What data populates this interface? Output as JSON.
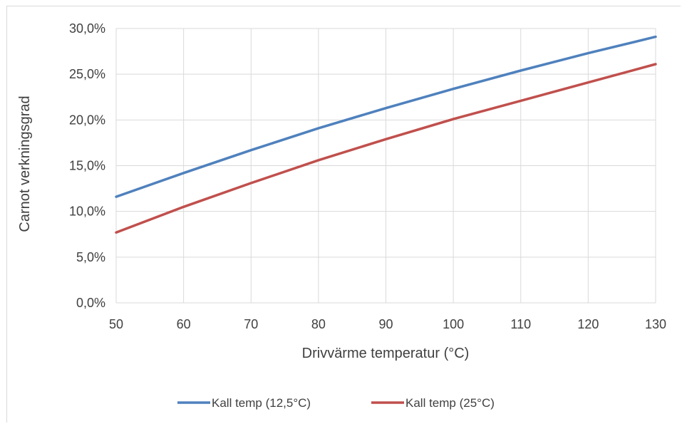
{
  "chart_data": {
    "type": "line",
    "xlabel": "Drivvärme temperatur (°C)",
    "ylabel": "Carnot verkningsgrad",
    "xlim": [
      50,
      130
    ],
    "ylim": [
      0,
      0.3
    ],
    "grid": true,
    "legend_position": "bottom",
    "x_ticks": [
      "50",
      "60",
      "70",
      "80",
      "90",
      "100",
      "110",
      "120",
      "130"
    ],
    "y_ticks": [
      "0,0%",
      "5,0%",
      "10,0%",
      "15,0%",
      "20,0%",
      "25,0%",
      "30,0%"
    ],
    "x": [
      50,
      60,
      70,
      80,
      90,
      100,
      110,
      120,
      130
    ],
    "series": [
      {
        "name": "Kall temp (12,5°C)",
        "color": "#4f81bd",
        "values": [
          0.116,
          0.142,
          0.167,
          0.191,
          0.213,
          0.234,
          0.254,
          0.273,
          0.291
        ]
      },
      {
        "name": "Kall temp (25°C)",
        "color": "#c0504d",
        "values": [
          0.077,
          0.105,
          0.131,
          0.156,
          0.179,
          0.201,
          0.221,
          0.241,
          0.261
        ]
      }
    ]
  }
}
